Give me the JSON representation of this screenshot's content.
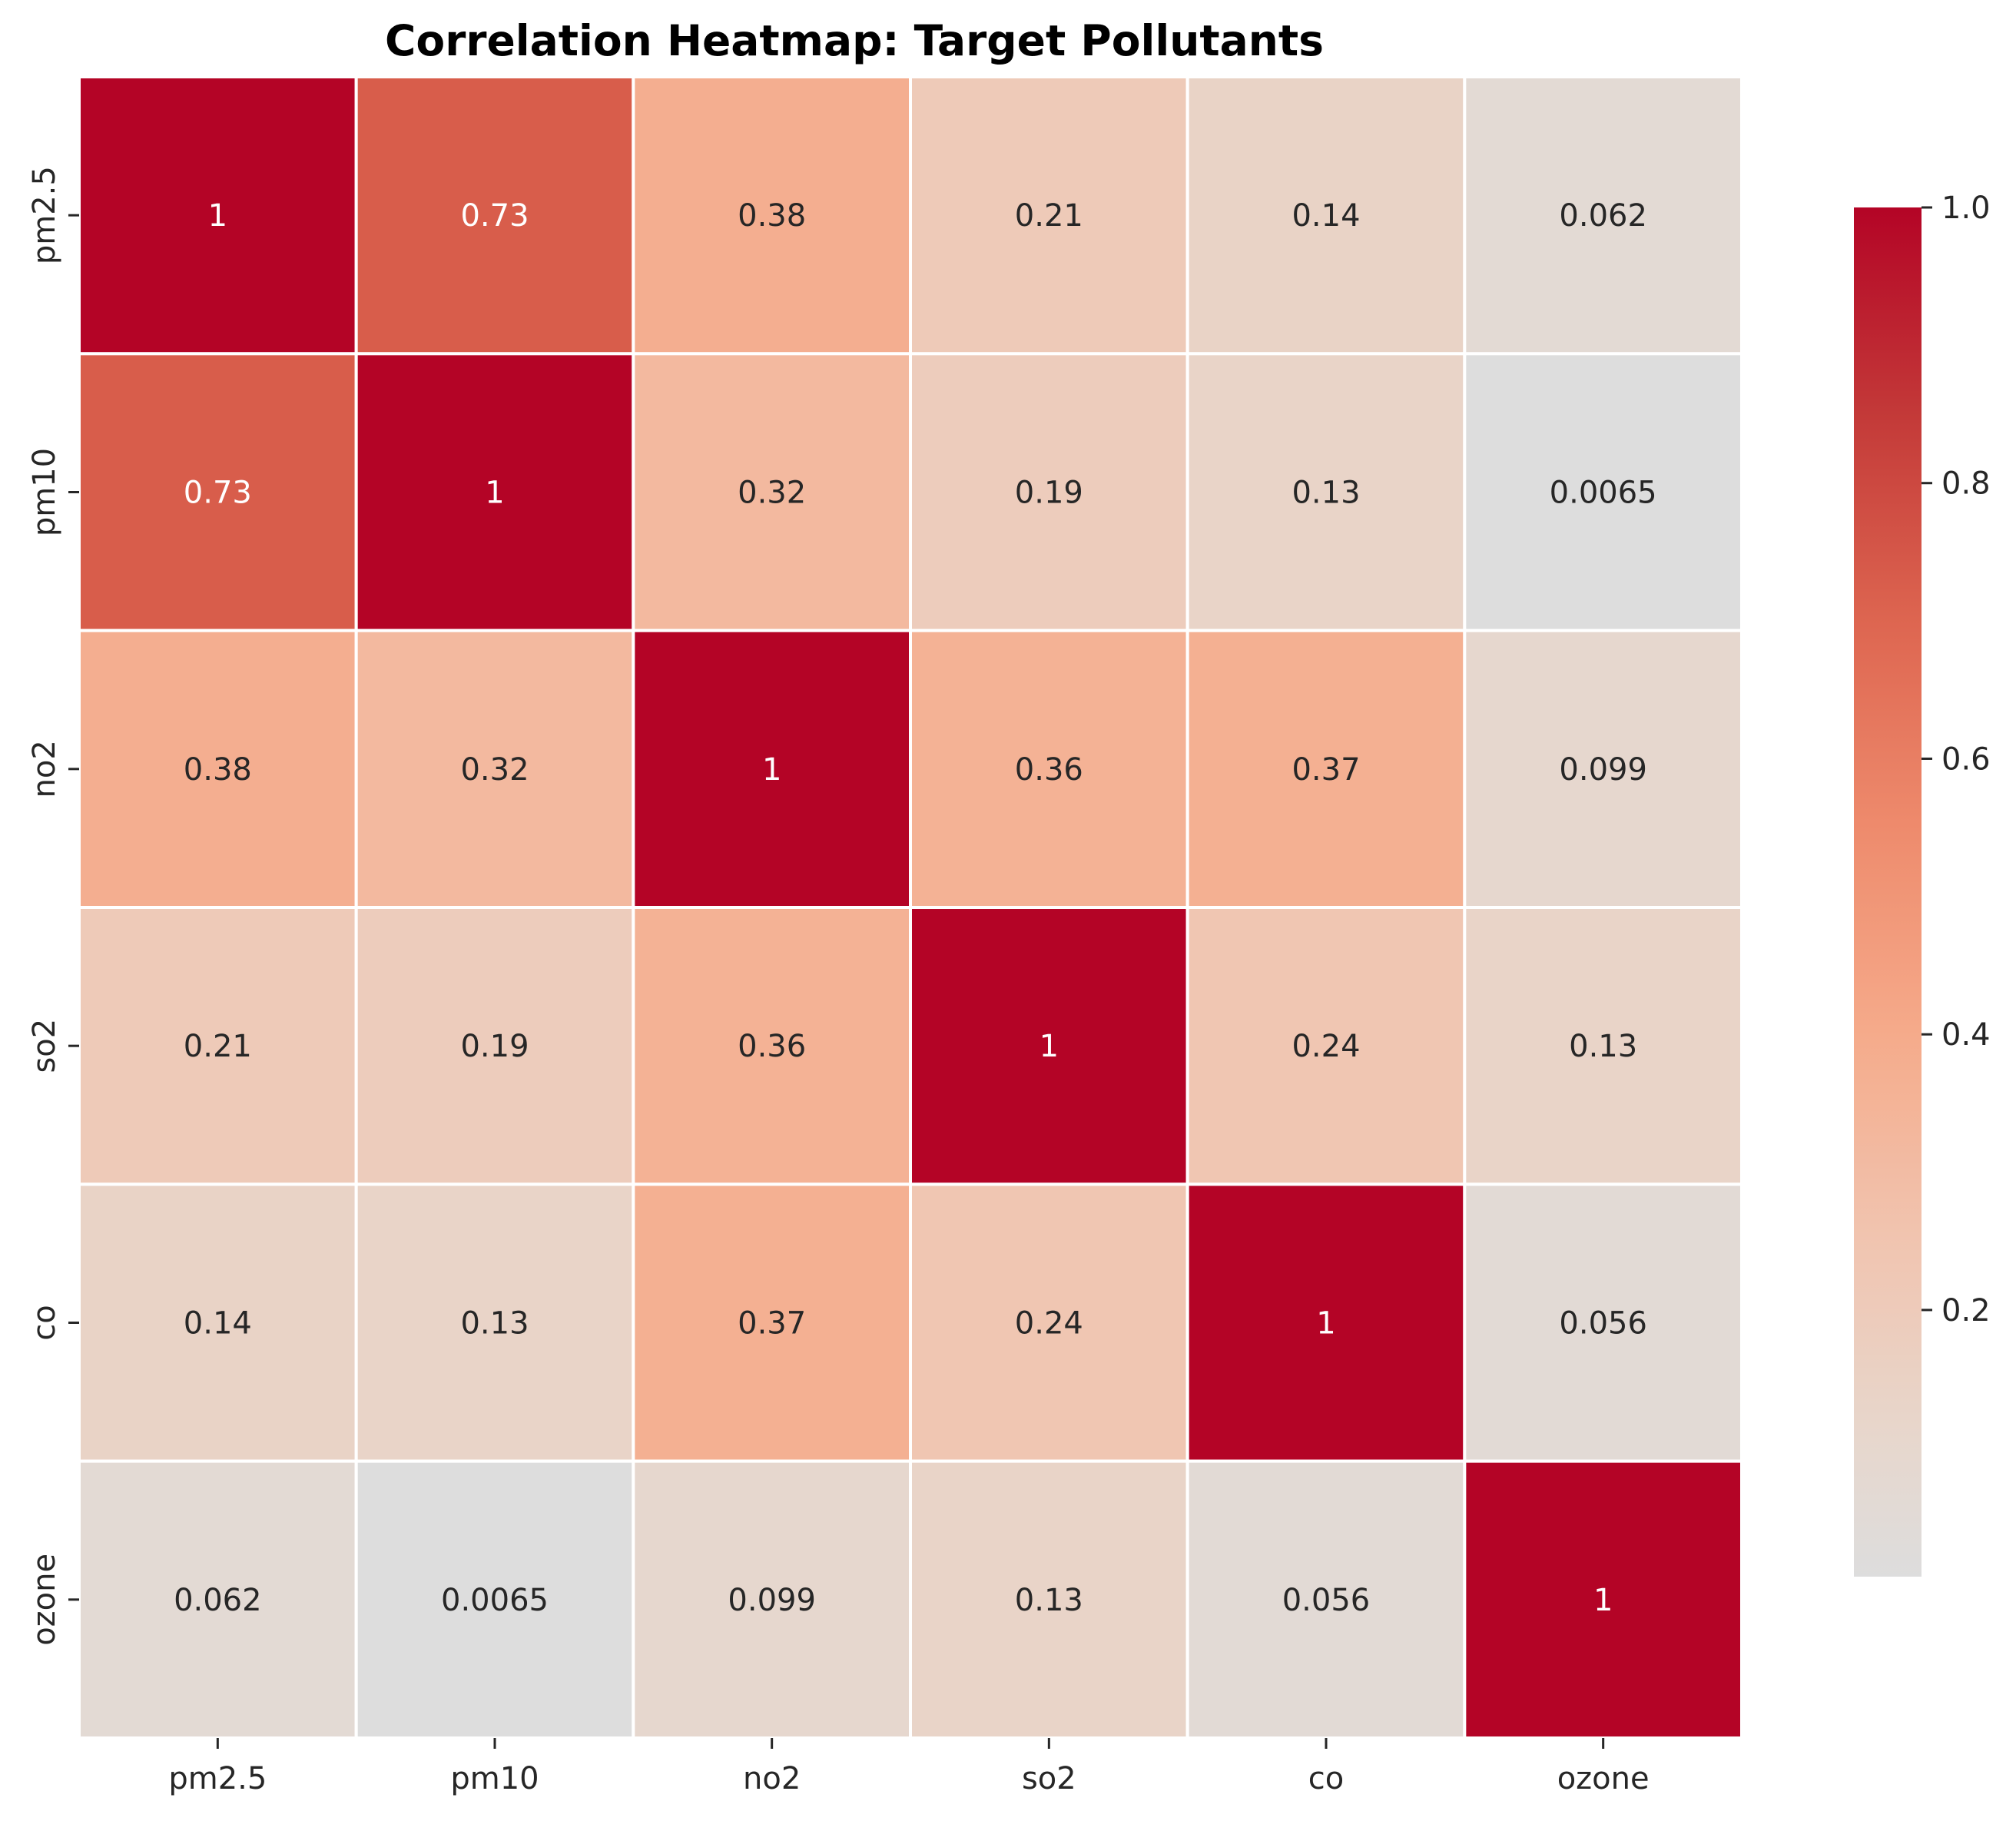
{
  "chart_data": {
    "type": "heatmap",
    "title": "Correlation Heatmap: Target Pollutants",
    "row_labels": [
      "pm2.5",
      "pm10",
      "no2",
      "so2",
      "co",
      "ozone"
    ],
    "col_labels": [
      "pm2.5",
      "pm10",
      "no2",
      "so2",
      "co",
      "ozone"
    ],
    "values": [
      [
        1,
        0.73,
        0.38,
        0.21,
        0.14,
        0.062
      ],
      [
        0.73,
        1,
        0.32,
        0.19,
        0.13,
        0.0065
      ],
      [
        0.38,
        0.32,
        1,
        0.36,
        0.37,
        0.099
      ],
      [
        0.21,
        0.19,
        0.36,
        1,
        0.24,
        0.13
      ],
      [
        0.14,
        0.13,
        0.37,
        0.24,
        1,
        0.056
      ],
      [
        0.062,
        0.0065,
        0.099,
        0.13,
        0.056,
        1
      ]
    ],
    "value_labels": [
      [
        "1",
        "0.73",
        "0.38",
        "0.21",
        "0.14",
        "0.062"
      ],
      [
        "0.73",
        "1",
        "0.32",
        "0.19",
        "0.13",
        "0.0065"
      ],
      [
        "0.38",
        "0.32",
        "1",
        "0.36",
        "0.37",
        "0.099"
      ],
      [
        "0.21",
        "0.19",
        "0.36",
        "1",
        "0.24",
        "0.13"
      ],
      [
        "0.14",
        "0.13",
        "0.37",
        "0.24",
        "1",
        "0.056"
      ],
      [
        "0.062",
        "0.0065",
        "0.099",
        "0.13",
        "0.056",
        "1"
      ]
    ],
    "colormap": "coolwarm",
    "color_range": [
      0.0065,
      1
    ],
    "colorbar": {
      "ticks": [
        0.2,
        0.4,
        0.6,
        0.8,
        1.0
      ],
      "tick_labels": [
        "0.2",
        "0.4",
        "0.6",
        "0.8",
        "1.0"
      ]
    },
    "grid_line_color": "#ffffff"
  }
}
